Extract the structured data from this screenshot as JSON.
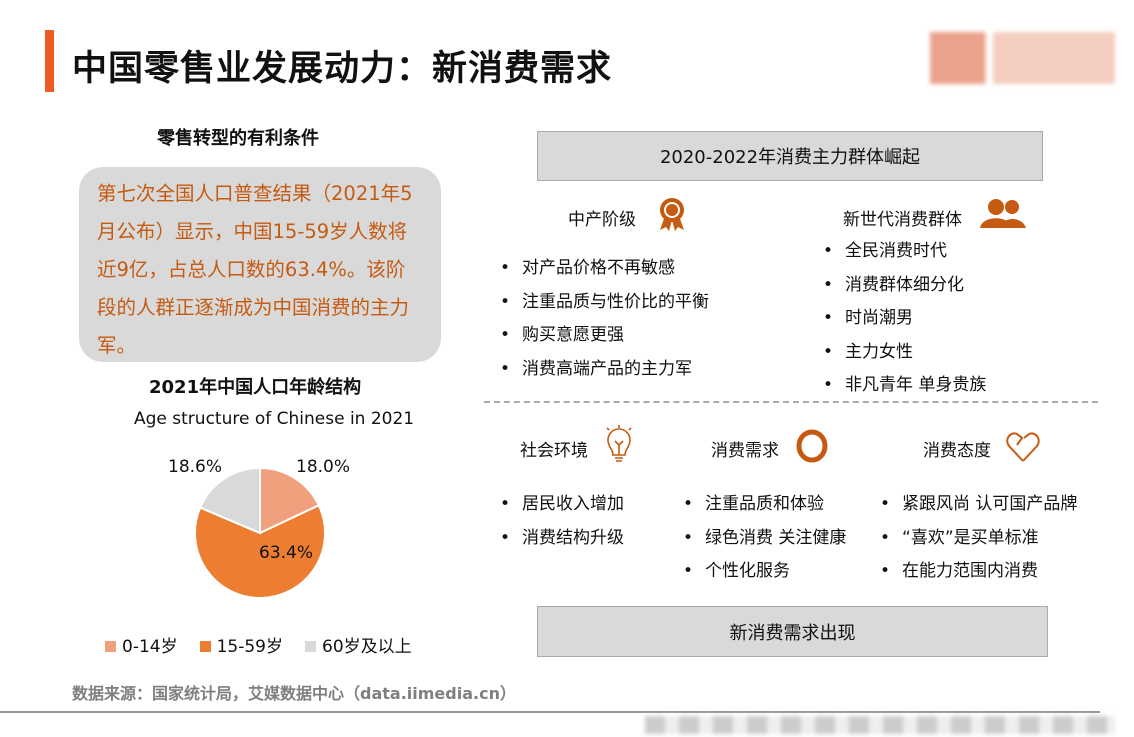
{
  "title": "中国零售业发展动力：新消费需求",
  "left": {
    "heading": "零售转型的有利条件",
    "highlight": "第七次全国人口普查结果（2021年5月公布）显示，中国15-59岁人数将近9亿，占总人口数的63.4%。该阶段的人群正逐渐成为中国消费的主力军。"
  },
  "chart_data": {
    "type": "pie",
    "title": "2021年中国人口年龄结构",
    "subtitle": "Age structure of Chinese in 2021",
    "categories": [
      "0-14岁",
      "15-59岁",
      "60岁及以上"
    ],
    "values": [
      18.0,
      63.4,
      18.6
    ],
    "labels": [
      "18.0%",
      "63.4%",
      "18.6%"
    ],
    "colors": [
      "#F1A07E",
      "#ED7D31",
      "#D9D9D9"
    ],
    "legend_position": "bottom"
  },
  "source": "数据来源：国家统计局，艾媒数据中心（data.iimedia.cn）",
  "right": {
    "top_box": "2020-2022年消费主力群体崛起",
    "groups": [
      {
        "title": "中产阶级",
        "icon": "award-ribbon-icon",
        "items": [
          "对产品价格不再敏感",
          "注重品质与性价比的平衡",
          "购买意愿更强",
          "消费高端产品的主力军"
        ]
      },
      {
        "title": "新世代消费群体",
        "icon": "users-icon",
        "items": [
          "全民消费时代",
          "消费群体细分化",
          "时尚潮男",
          "主力女性",
          "非凡青年 单身贵族"
        ]
      }
    ],
    "factors": [
      {
        "title": "社会环境",
        "icon": "lightbulb-icon",
        "items": [
          "居民收入增加",
          "消费结构升级"
        ]
      },
      {
        "title": "消费需求",
        "icon": "ring-icon",
        "items": [
          "注重品质和体验",
          "绿色消费 关注健康",
          "个性化服务"
        ]
      },
      {
        "title": "消费态度",
        "icon": "heart-icon",
        "items": [
          "紧跟风尚 认可国产品牌",
          "“喜欢”是买单标准",
          "在能力范围内消费"
        ]
      }
    ],
    "bottom_box": "新消费需求出现"
  },
  "accent": "#C55A11"
}
